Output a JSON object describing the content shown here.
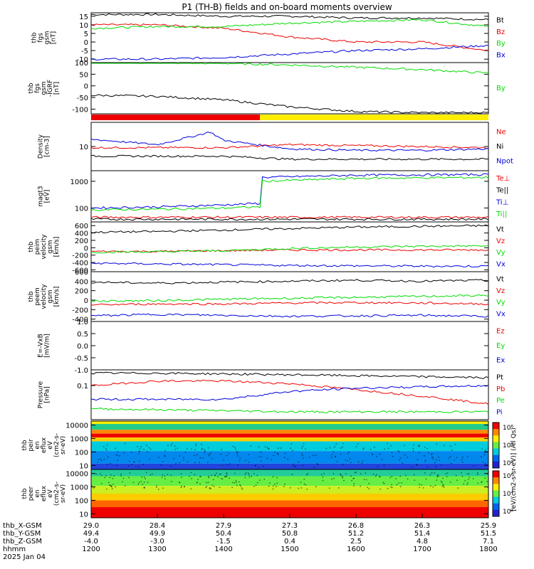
{
  "title": "P1 (TH-B) fields and on-board moments overview",
  "colors": {
    "black": "#000000",
    "red": "#ee0000",
    "green": "#00dd00",
    "blue": "#0000dd",
    "yellow": "#ffee00",
    "orange": "#ff8800"
  },
  "xaxis": {
    "hhmm": [
      "1200",
      "1300",
      "1400",
      "1500",
      "1600",
      "1700",
      "1800"
    ],
    "x_gsm": [
      "29.0",
      "28.4",
      "27.9",
      "27.3",
      "26.8",
      "26.3",
      "25.9"
    ],
    "y_gsm": [
      "49.4",
      "49.9",
      "50.4",
      "50.8",
      "51.2",
      "51.4",
      "51.5"
    ],
    "z_gsm": [
      "-4.0",
      "-3.0",
      "-1.5",
      "0.4",
      "2.5",
      "4.8",
      "7.1"
    ],
    "row_labels": [
      "thb_X-GSM",
      "thb_Y-GSM",
      "thb_Z-GSM",
      "hhmm",
      "2025 Jan 04"
    ]
  },
  "chart_data": [
    {
      "type": "line",
      "ylabel": [
        "thb",
        "fgs",
        "gsm",
        "[nT]"
      ],
      "ticks": [
        "15",
        "10",
        "5",
        "0",
        "-5",
        "-10"
      ],
      "ylim": [
        -12,
        17
      ],
      "legend": [
        {
          "name": "Bt",
          "color": "#000000"
        },
        {
          "name": "Bz",
          "color": "#ee0000"
        },
        {
          "name": "By",
          "color": "#00dd00"
        },
        {
          "name": "Bx",
          "color": "#0000dd"
        }
      ],
      "series": [
        {
          "name": "Bt",
          "color": "#000000",
          "x": [
            12,
            13,
            14,
            15,
            16,
            17,
            18
          ],
          "y": [
            16,
            16,
            15,
            15,
            14,
            14,
            13
          ]
        },
        {
          "name": "Bz",
          "color": "#ee0000",
          "x": [
            12,
            13,
            14,
            15,
            16,
            17,
            18
          ],
          "y": [
            10,
            10,
            8,
            3,
            0,
            0,
            -5
          ]
        },
        {
          "name": "By",
          "color": "#00dd00",
          "x": [
            12,
            13,
            14,
            15,
            16,
            17,
            18
          ],
          "y": [
            8,
            9,
            9,
            11,
            12,
            13,
            9
          ]
        },
        {
          "name": "Bx",
          "color": "#0000dd",
          "x": [
            12,
            13,
            14,
            15,
            16,
            17,
            18
          ],
          "y": [
            -10,
            -10,
            -9,
            -7,
            -5,
            -4,
            -2
          ]
        }
      ]
    },
    {
      "type": "line",
      "ylabel": [
        "thb",
        "fgs",
        "gsm",
        "-IGRF",
        "[nT]"
      ],
      "ticks": [
        "100",
        "50",
        "0",
        "-50",
        "-100"
      ],
      "ylim": [
        -120,
        100
      ],
      "legend": [
        {
          "name": "By",
          "color": "#00dd00"
        }
      ],
      "series": [
        {
          "name": "By",
          "color": "#00dd00",
          "x": [
            12,
            13,
            14,
            15,
            16,
            17,
            18
          ],
          "y": [
            100,
            99,
            97,
            90,
            80,
            70,
            55
          ]
        },
        {
          "name": "",
          "color": "#000000",
          "x": [
            12,
            13,
            14,
            15,
            16,
            17,
            18
          ],
          "y": [
            -40,
            -45,
            -60,
            -90,
            -110,
            -115,
            -115
          ]
        }
      ]
    },
    {
      "type": "bar",
      "legend": [],
      "segments": [
        {
          "from": 12,
          "to": 14.55,
          "color": "#ee0000"
        },
        {
          "from": 14.55,
          "to": 18,
          "color": "#ffee00"
        }
      ]
    },
    {
      "type": "line",
      "ylabel": [
        "Density",
        "[cm-3]"
      ],
      "ticks": [
        "10"
      ],
      "ylim": [
        1,
        100
      ],
      "legend": [
        {
          "name": "Ne",
          "color": "#ee0000"
        },
        {
          "name": "Ni",
          "color": "#000000"
        },
        {
          "name": "Npot",
          "color": "#0000dd"
        }
      ],
      "series": [
        {
          "name": "Ne",
          "color": "#ee0000",
          "x": [
            12,
            13,
            14,
            15,
            16,
            17,
            18
          ],
          "y": [
            9,
            9,
            9,
            12,
            11,
            10,
            9
          ]
        },
        {
          "name": "Ni",
          "color": "#000000",
          "x": [
            12,
            13,
            14,
            15,
            16,
            17,
            18
          ],
          "y": [
            4,
            4,
            4,
            3,
            3,
            3,
            3
          ]
        },
        {
          "name": "Npot",
          "color": "#0000dd",
          "x": [
            12,
            13,
            13.5,
            13.8,
            14,
            14.5,
            15,
            16,
            17,
            18
          ],
          "y": [
            20,
            12,
            25,
            40,
            18,
            12,
            8,
            7,
            7,
            8
          ]
        }
      ]
    },
    {
      "type": "line",
      "ylabel": [
        "magt3",
        "[eV]"
      ],
      "ticks": [
        "1000",
        "100"
      ],
      "ylim": [
        30,
        2500
      ],
      "legend": [
        {
          "name": "Te⊥",
          "color": "#ee0000"
        },
        {
          "name": "Te||",
          "color": "#000000"
        },
        {
          "name": "Ti⊥",
          "color": "#0000dd"
        },
        {
          "name": "Ti||",
          "color": "#00dd00"
        }
      ],
      "series": [
        {
          "name": "Te⊥",
          "color": "#ee0000",
          "x": [
            12,
            13,
            14,
            15,
            16,
            17,
            18
          ],
          "y": [
            45,
            45,
            45,
            45,
            45,
            45,
            45
          ]
        },
        {
          "name": "Te||",
          "color": "#000000",
          "x": [
            12,
            13,
            14,
            15,
            16,
            17,
            18
          ],
          "y": [
            38,
            38,
            38,
            38,
            38,
            38,
            38
          ]
        },
        {
          "name": "Ti⊥",
          "color": "#0000dd",
          "x": [
            12,
            13,
            14,
            14.55,
            14.56,
            16,
            18
          ],
          "y": [
            100,
            110,
            130,
            150,
            1400,
            1700,
            1800
          ]
        },
        {
          "name": "Ti||",
          "color": "#00dd00",
          "x": [
            12,
            13,
            14,
            14.55,
            14.56,
            16,
            18
          ],
          "y": [
            85,
            90,
            100,
            110,
            1000,
            1300,
            1400
          ]
        }
      ]
    },
    {
      "type": "line",
      "ylabel": [
        "thb",
        "peim",
        "velocity",
        "gsm",
        "[km/s]"
      ],
      "ticks": [
        "600",
        "400",
        "200",
        "0",
        "-200",
        "-400",
        "-600"
      ],
      "ylim": [
        -650,
        700
      ],
      "legend": [
        {
          "name": "Vt",
          "color": "#000000"
        },
        {
          "name": "Vz",
          "color": "#ee0000"
        },
        {
          "name": "Vy",
          "color": "#00dd00"
        },
        {
          "name": "Vx",
          "color": "#0000dd"
        }
      ],
      "series": [
        {
          "name": "Vt",
          "color": "#000000",
          "x": [
            12,
            13,
            14,
            15,
            16,
            17,
            18
          ],
          "y": [
            420,
            440,
            480,
            520,
            560,
            580,
            600
          ]
        },
        {
          "name": "Vz",
          "color": "#ee0000",
          "x": [
            12,
            13,
            14,
            15,
            16,
            17,
            18
          ],
          "y": [
            -100,
            -100,
            -80,
            -60,
            -60,
            -60,
            -60
          ]
        },
        {
          "name": "Vy",
          "color": "#00dd00",
          "x": [
            12,
            13,
            14,
            15,
            16,
            17,
            18
          ],
          "y": [
            -120,
            -110,
            -80,
            -20,
            20,
            40,
            50
          ]
        },
        {
          "name": "Vx",
          "color": "#0000dd",
          "x": [
            12,
            13,
            14,
            15,
            16,
            17,
            18
          ],
          "y": [
            -420,
            -440,
            -460,
            -480,
            -490,
            -500,
            -500
          ]
        }
      ]
    },
    {
      "type": "line",
      "ylabel": [
        "thb",
        "peem",
        "velocity",
        "gsm",
        "[km/s]"
      ],
      "ticks": [
        "600",
        "400",
        "200",
        "0",
        "-200",
        "-400"
      ],
      "ylim": [
        -450,
        600
      ],
      "legend": [
        {
          "name": "Vt",
          "color": "#000000"
        },
        {
          "name": "Vz",
          "color": "#ee0000"
        },
        {
          "name": "Vy",
          "color": "#00dd00"
        },
        {
          "name": "Vx",
          "color": "#0000dd"
        }
      ],
      "series": [
        {
          "name": "Vt",
          "color": "#000000",
          "x": [
            12,
            13,
            14,
            15,
            16,
            17,
            18
          ],
          "y": [
            380,
            360,
            380,
            400,
            420,
            400,
            420
          ]
        },
        {
          "name": "Vz",
          "color": "#ee0000",
          "x": [
            12,
            13,
            14,
            15,
            16,
            17,
            18
          ],
          "y": [
            -100,
            -80,
            -80,
            -60,
            -50,
            -60,
            -80
          ]
        },
        {
          "name": "Vy",
          "color": "#00dd00",
          "x": [
            12,
            13,
            14,
            15,
            16,
            17,
            18
          ],
          "y": [
            -20,
            -10,
            20,
            40,
            60,
            80,
            100
          ]
        },
        {
          "name": "Vx",
          "color": "#0000dd",
          "x": [
            12,
            13,
            14,
            15,
            16,
            17,
            18
          ],
          "y": [
            -330,
            -300,
            -320,
            -340,
            -330,
            -320,
            -340
          ]
        }
      ]
    },
    {
      "type": "line",
      "ylabel": [
        "E=-VxB",
        "[mV/m]"
      ],
      "ticks": [
        "1.0",
        "0.5",
        "0.0",
        "-0.5",
        "-1.0"
      ],
      "ylim": [
        -1,
        1
      ],
      "legend": [
        {
          "name": "Ez",
          "color": "#ee0000"
        },
        {
          "name": "Ey",
          "color": "#00dd00"
        },
        {
          "name": "Ex",
          "color": "#0000dd"
        }
      ],
      "series": []
    },
    {
      "type": "line",
      "ylabel": [
        "Pressure",
        "[nPa]"
      ],
      "ticks": [
        "0.1"
      ],
      "ylim": [
        0.005,
        0.4
      ],
      "legend": [
        {
          "name": "Pt",
          "color": "#000000"
        },
        {
          "name": "Pb",
          "color": "#ee0000"
        },
        {
          "name": "Pe",
          "color": "#00dd00"
        },
        {
          "name": "Pi",
          "color": "#0000dd"
        }
      ],
      "series": [
        {
          "name": "Pt",
          "color": "#000000",
          "x": [
            12,
            13,
            14,
            15,
            16,
            17,
            18
          ],
          "y": [
            0.3,
            0.3,
            0.28,
            0.26,
            0.24,
            0.22,
            0.2
          ]
        },
        {
          "name": "Pb",
          "color": "#ee0000",
          "x": [
            12,
            13,
            14,
            15,
            16,
            17,
            18
          ],
          "y": [
            0.1,
            0.15,
            0.15,
            0.12,
            0.07,
            0.04,
            0.02
          ]
        },
        {
          "name": "Pe",
          "color": "#00dd00",
          "x": [
            12,
            13,
            14,
            15,
            16,
            17,
            18
          ],
          "y": [
            0.013,
            0.012,
            0.011,
            0.01,
            0.01,
            0.01,
            0.01
          ]
        },
        {
          "name": "Pi",
          "color": "#0000dd",
          "x": [
            12,
            13,
            14,
            15,
            16,
            17,
            18
          ],
          "y": [
            0.03,
            0.03,
            0.03,
            0.06,
            0.08,
            0.09,
            0.1
          ]
        }
      ]
    },
    {
      "type": "heatmap",
      "ylabel": [
        "thb",
        "peir",
        "en",
        "eflux",
        "eV",
        "(cm2-s-",
        "sr-eV)"
      ],
      "ticks": [
        "10000",
        "1000",
        "100",
        "10"
      ],
      "ylim": [
        5,
        20000
      ]
    },
    {
      "type": "heatmap",
      "ylabel": [
        "thb",
        "peer",
        "en",
        "eflux",
        "eV",
        "(cm2-s-",
        "sr-eV)"
      ],
      "ticks": [
        "10000",
        "1000",
        "100",
        "10"
      ],
      "ylim": [
        5,
        20000
      ]
    }
  ],
  "colorbar": {
    "label": "[eV/(cm2-s-sr-eV)] (All Qs)",
    "ticks": [
      "10⁶",
      "10⁴",
      "10²"
    ]
  }
}
